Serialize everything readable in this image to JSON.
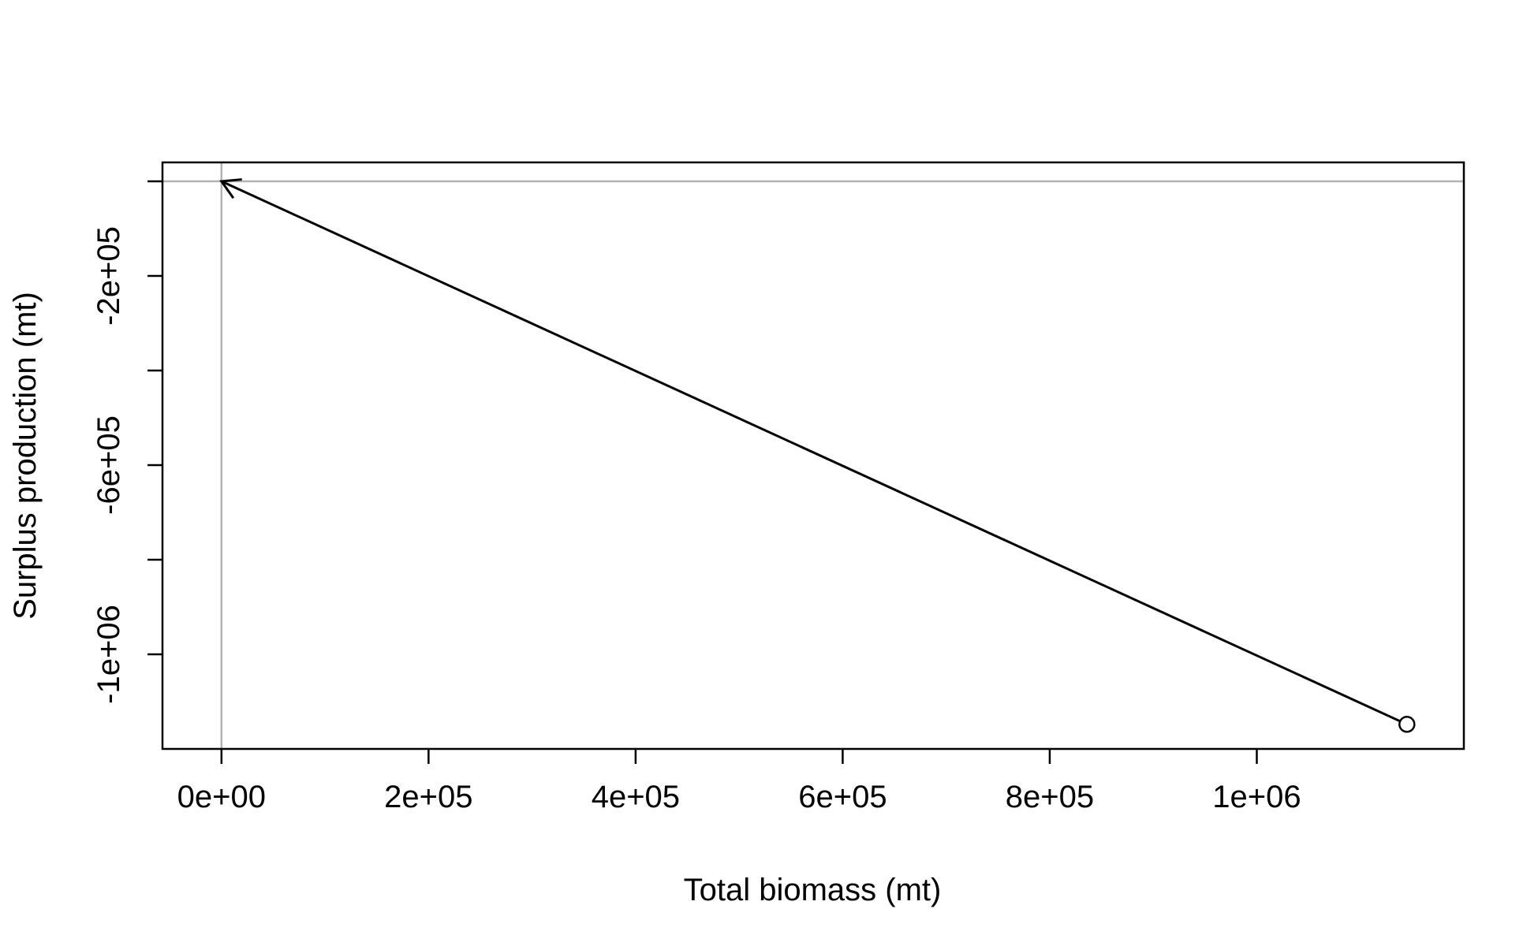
{
  "chart_data": {
    "type": "line",
    "title": "",
    "xlabel": "Total biomass (mt)",
    "ylabel": "Surplus production (mt)",
    "xlim": [
      -57000,
      1200000
    ],
    "ylim": [
      -1200000,
      40000
    ],
    "x_ticks": [
      0,
      200000,
      400000,
      600000,
      800000,
      1000000
    ],
    "x_tick_labels": [
      "0e+00",
      "2e+05",
      "4e+05",
      "6e+05",
      "8e+05",
      "1e+06"
    ],
    "y_ticks": [
      0,
      -200000,
      -400000,
      -600000,
      -800000,
      -1000000
    ],
    "y_tick_labels": [
      "",
      "-2e+05",
      "",
      "-6e+05",
      "",
      "-1e+06"
    ],
    "reference_lines": {
      "x": 0,
      "y": 0,
      "color": "#b3b3b3"
    },
    "grid": false,
    "series": [
      {
        "color": "#000000",
        "points": [
          {
            "x": 1145000,
            "y": -1148000
          },
          {
            "x": 0,
            "y": 0
          }
        ],
        "start_marker": "open-circle",
        "end_marker": "arrow"
      }
    ]
  }
}
